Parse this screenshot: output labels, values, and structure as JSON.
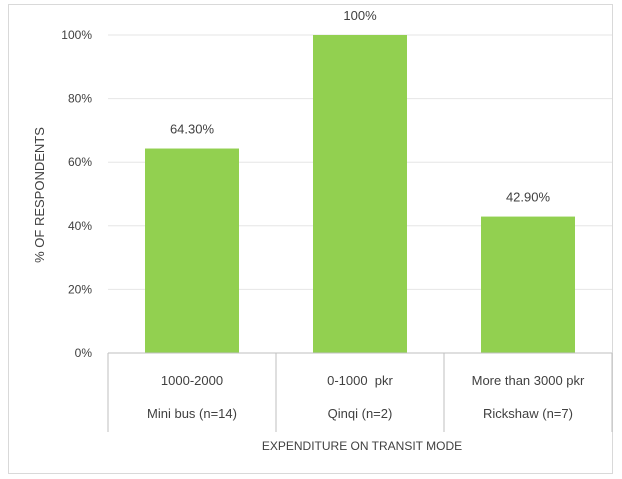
{
  "chart_data": {
    "type": "bar",
    "categories": [
      {
        "range": "1000-2000",
        "mode": "Mini bus (n=14)"
      },
      {
        "range": "0-1000  pkr",
        "mode": "Qinqi (n=2)"
      },
      {
        "range": "More than 3000 pkr",
        "mode": "Rickshaw (n=7)"
      }
    ],
    "values": [
      64.3,
      100,
      42.9
    ],
    "data_labels": [
      "64.30%",
      "100%",
      "42.90%"
    ],
    "xlabel": "EXPENDITURE ON TRANSIT MODE",
    "ylabel": "% OF RESPONDENTS",
    "ylim": [
      0,
      100
    ],
    "yticks": [
      {
        "value": 0,
        "label": "0%"
      },
      {
        "value": 20,
        "label": "20%"
      },
      {
        "value": 40,
        "label": "40%"
      },
      {
        "value": 60,
        "label": "60%"
      },
      {
        "value": 80,
        "label": "80%"
      },
      {
        "value": 100,
        "label": "100%"
      }
    ],
    "grid": true,
    "bar_color": "#92d050",
    "grid_color": "#e6e6e6",
    "axis_color": "#bfbfbf"
  }
}
